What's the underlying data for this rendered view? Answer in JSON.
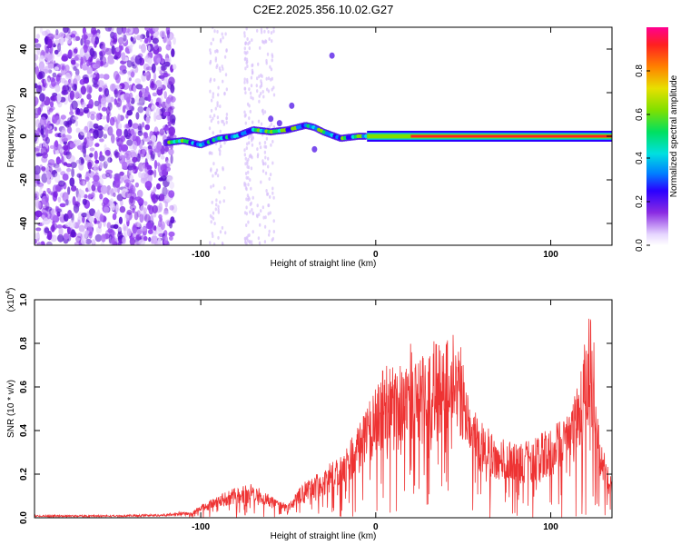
{
  "chart_data": [
    {
      "type": "heatmap",
      "title": "C2E2.2025.356.10.02.G27",
      "xlabel": "Height of straight line (km)",
      "ylabel": "Frequency (Hz)",
      "xlim": [
        -195,
        135
      ],
      "ylim": [
        -50,
        50
      ],
      "xticks": [
        -100,
        0,
        100
      ],
      "yticks": [
        -40,
        -20,
        0,
        20,
        40
      ],
      "colorbar": {
        "label": "Normalized spectral amplitude",
        "range": [
          0,
          1
        ],
        "ticks": [
          "0.0",
          "0.2",
          "0.4",
          "0.6",
          "0.8"
        ]
      },
      "ridge": {
        "description_points_x": [
          -120,
          -110,
          -100,
          -90,
          -80,
          -70,
          -60,
          -50,
          -40,
          -35,
          -30,
          -20,
          -10,
          0,
          10,
          50,
          100,
          135
        ],
        "description_points_y": [
          -3,
          -2,
          -4,
          -1,
          0,
          3,
          2,
          3,
          5,
          4,
          2,
          -1,
          0,
          0,
          0,
          0,
          0,
          0
        ]
      }
    },
    {
      "type": "line",
      "xlabel": "Height of straight line (km)",
      "ylabel": "SNR (10 * v/v)",
      "yscale_label": "(x10",
      "yscale_exp": "4",
      "yscale_close": ")",
      "xlim": [
        -195,
        135
      ],
      "ylim": [
        0,
        1.0
      ],
      "xticks": [
        -100,
        0,
        100
      ],
      "yticks": [
        "0.0",
        "0.2",
        "0.4",
        "0.6",
        "0.8",
        "1.0"
      ],
      "series": [
        {
          "name": "SNR",
          "color": "#ee3333",
          "envelope_x": [
            -195,
            -150,
            -120,
            -105,
            -100,
            -90,
            -80,
            -70,
            -60,
            -50,
            -45,
            -40,
            -30,
            -20,
            -10,
            0,
            5,
            15,
            20,
            25,
            30,
            35,
            40,
            45,
            50,
            55,
            60,
            70,
            80,
            90,
            100,
            110,
            115,
            118,
            120,
            122,
            125,
            128,
            132,
            135
          ],
          "envelope_y": [
            0.01,
            0.01,
            0.015,
            0.03,
            0.06,
            0.1,
            0.14,
            0.16,
            0.1,
            0.06,
            0.12,
            0.18,
            0.22,
            0.3,
            0.42,
            0.6,
            0.7,
            0.7,
            0.8,
            0.72,
            0.78,
            0.85,
            0.82,
            0.86,
            0.78,
            0.55,
            0.45,
            0.37,
            0.34,
            0.36,
            0.42,
            0.5,
            0.6,
            0.7,
            0.88,
            0.96,
            0.8,
            0.4,
            0.25,
            0.2
          ]
        }
      ]
    }
  ]
}
